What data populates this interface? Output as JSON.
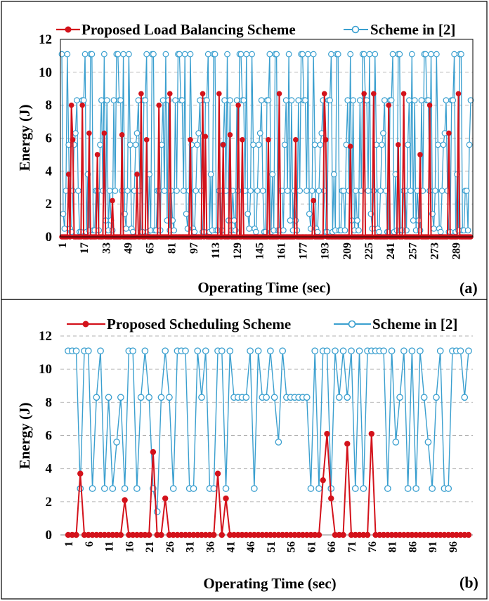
{
  "chart_data": [
    {
      "type": "line",
      "panel_label": "(a)",
      "xlabel": "Operating Time (sec)",
      "ylabel": "Energy (J)",
      "ylim": [
        0,
        12
      ],
      "yticks": [
        0,
        2,
        4,
        6,
        8,
        10,
        12
      ],
      "xticks": [
        "1",
        "17",
        "33",
        "49",
        "65",
        "81",
        "97",
        "113",
        "129",
        "145",
        "161",
        "177",
        "193",
        "209",
        "225",
        "241",
        "257",
        "273",
        "289"
      ],
      "x_count": 300,
      "grid": "horizontal dashed",
      "legend_position": "top",
      "series": [
        {
          "name": "Proposed Load Balancing Scheme",
          "color": "#d3121b",
          "marker": "filled-circle",
          "peaks": [
            {
              "x": 6,
              "y": 3.8
            },
            {
              "x": 8,
              "y": 8.0
            },
            {
              "x": 9,
              "y": 5.9
            },
            {
              "x": 16,
              "y": 8.0
            },
            {
              "x": 21,
              "y": 6.3
            },
            {
              "x": 27,
              "y": 5.0
            },
            {
              "x": 32,
              "y": 6.3
            },
            {
              "x": 38,
              "y": 2.2
            },
            {
              "x": 45,
              "y": 6.2
            },
            {
              "x": 56,
              "y": 3.8
            },
            {
              "x": 59,
              "y": 8.7
            },
            {
              "x": 63,
              "y": 5.9
            },
            {
              "x": 72,
              "y": 8.0
            },
            {
              "x": 80,
              "y": 8.7
            },
            {
              "x": 95,
              "y": 5.9
            },
            {
              "x": 104,
              "y": 8.7
            },
            {
              "x": 106,
              "y": 6.1
            },
            {
              "x": 116,
              "y": 8.7
            },
            {
              "x": 119,
              "y": 5.6
            },
            {
              "x": 124,
              "y": 6.2
            },
            {
              "x": 130,
              "y": 8.0
            },
            {
              "x": 133,
              "y": 5.9
            },
            {
              "x": 152,
              "y": 5.9
            },
            {
              "x": 160,
              "y": 8.7
            },
            {
              "x": 172,
              "y": 5.9
            },
            {
              "x": 185,
              "y": 2.2
            },
            {
              "x": 193,
              "y": 8.7
            },
            {
              "x": 194,
              "y": 5.9
            },
            {
              "x": 212,
              "y": 5.5
            },
            {
              "x": 222,
              "y": 8.7
            },
            {
              "x": 229,
              "y": 8.7
            },
            {
              "x": 240,
              "y": 8.0
            },
            {
              "x": 247,
              "y": 5.6
            },
            {
              "x": 251,
              "y": 8.7
            },
            {
              "x": 263,
              "y": 5.0
            },
            {
              "x": 270,
              "y": 8.0
            },
            {
              "x": 284,
              "y": 6.3
            },
            {
              "x": 291,
              "y": 8.7
            }
          ],
          "baseline": 0
        },
        {
          "name": "Scheme in [2]",
          "color": "#3a9fcf",
          "marker": "open-circle",
          "values_pattern": [
            11.1,
            0.4,
            8.3,
            2.8,
            11.1,
            0.3,
            5.6,
            1.4,
            8.3,
            0.4,
            2.8,
            11.1,
            0.3,
            6.3,
            0.5,
            8.3,
            2.8,
            11.1,
            0.4,
            3.8,
            8.3,
            0.3,
            2.8,
            11.1,
            1.0,
            5.6,
            0.4,
            8.3,
            2.8,
            11.1
          ]
        }
      ]
    },
    {
      "type": "line",
      "panel_label": "(b)",
      "xlabel": "Operating Time (sec)",
      "ylabel": "Energy (J)",
      "ylim": [
        0,
        12
      ],
      "yticks": [
        0,
        2,
        4,
        6,
        8,
        10,
        12
      ],
      "xticks": [
        "1",
        "6",
        "11",
        "16",
        "21",
        "26",
        "31",
        "36",
        "41",
        "46",
        "51",
        "56",
        "61",
        "66",
        "71",
        "76",
        "81",
        "86",
        "91",
        "96"
      ],
      "x": [
        1,
        2,
        3,
        4,
        5,
        6,
        7,
        8,
        9,
        10,
        11,
        12,
        13,
        14,
        15,
        16,
        17,
        18,
        19,
        20,
        21,
        22,
        23,
        24,
        25,
        26,
        27,
        28,
        29,
        30,
        31,
        32,
        33,
        34,
        35,
        36,
        37,
        38,
        39,
        40,
        41,
        42,
        43,
        44,
        45,
        46,
        47,
        48,
        49,
        50,
        51,
        52,
        53,
        54,
        55,
        56,
        57,
        58,
        59,
        60,
        61,
        62,
        63,
        64,
        65,
        66,
        67,
        68,
        69,
        70,
        71,
        72,
        73,
        74,
        75,
        76,
        77,
        78,
        79,
        80,
        81,
        82,
        83,
        84,
        85,
        86,
        87,
        88,
        89,
        90,
        91,
        92,
        93,
        94,
        95,
        96,
        97,
        98,
        99,
        100
      ],
      "grid": "horizontal dashed",
      "legend_position": "top",
      "series": [
        {
          "name": "Proposed Scheduling Scheme",
          "color": "#d3121b",
          "marker": "filled-circle",
          "values": [
            0,
            0,
            0,
            3.7,
            0,
            0,
            0,
            0,
            0,
            0,
            0,
            0,
            0,
            0,
            2.1,
            0,
            0,
            0,
            0,
            0,
            0,
            5.0,
            0,
            0,
            2.2,
            0,
            0,
            0,
            0,
            0,
            0,
            0,
            0,
            0,
            0,
            0,
            0,
            3.7,
            0,
            2.2,
            0,
            0,
            0,
            0,
            0,
            0,
            0,
            0,
            0,
            0,
            0,
            0,
            0,
            0,
            0,
            0,
            0,
            0,
            0,
            0,
            0,
            0,
            0,
            3.3,
            6.1,
            2.2,
            0,
            0,
            0,
            5.5,
            0,
            0,
            0,
            0,
            0,
            6.1,
            0,
            0,
            0,
            0,
            0,
            0,
            0,
            0,
            0,
            0,
            0,
            0,
            0,
            0,
            0,
            0,
            0,
            0,
            0,
            0,
            0,
            0,
            0,
            0
          ]
        },
        {
          "name": "Scheme in [2]",
          "color": "#3a9fcf",
          "marker": "open-circle",
          "values": [
            11.1,
            11.1,
            11.1,
            2.8,
            11.1,
            11.1,
            2.8,
            8.3,
            11.1,
            2.8,
            8.3,
            2.8,
            5.6,
            8.3,
            2.8,
            11.1,
            11.1,
            2.8,
            8.3,
            11.1,
            8.3,
            2.8,
            1.4,
            8.3,
            11.1,
            8.3,
            2.8,
            11.1,
            11.1,
            11.1,
            2.8,
            2.8,
            11.1,
            8.3,
            11.1,
            2.8,
            2.8,
            11.1,
            11.1,
            2.8,
            11.1,
            8.3,
            8.3,
            8.3,
            8.3,
            11.1,
            2.8,
            11.1,
            8.3,
            8.3,
            11.1,
            8.3,
            5.6,
            11.1,
            8.3,
            8.3,
            8.3,
            8.3,
            8.3,
            8.3,
            2.8,
            11.1,
            2.8,
            11.1,
            11.1,
            2.8,
            11.1,
            8.3,
            11.1,
            8.3,
            11.1,
            2.8,
            11.1,
            2.8,
            11.1,
            11.1,
            11.1,
            11.1,
            11.1,
            2.8,
            11.1,
            5.6,
            8.3,
            11.1,
            2.8,
            11.1,
            2.8,
            11.1,
            8.3,
            5.6,
            2.8,
            8.3,
            11.1,
            2.8,
            2.8,
            11.1,
            11.1,
            11.1,
            8.3,
            11.1
          ]
        }
      ]
    }
  ]
}
